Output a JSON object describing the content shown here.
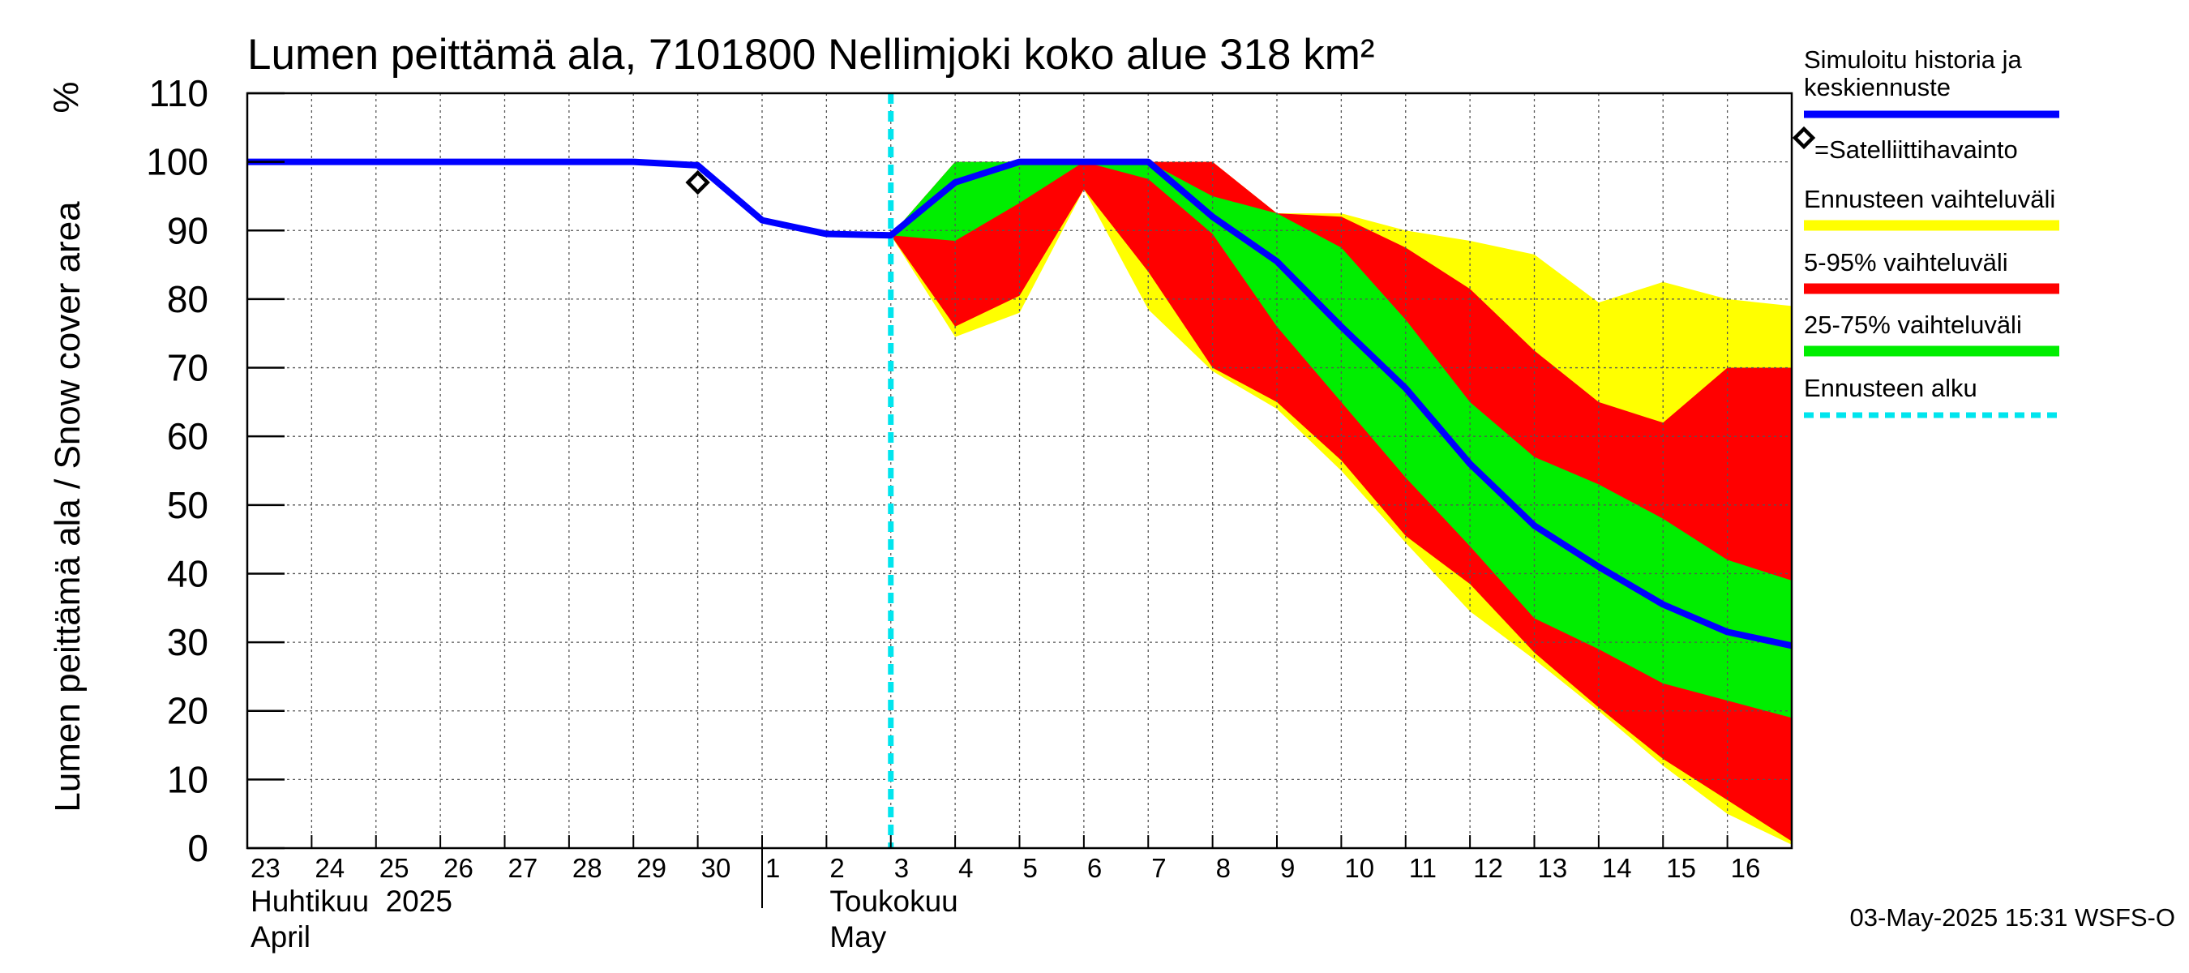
{
  "chart_data": {
    "type": "area",
    "title": "Lumen peittämä ala, 7101800 Nellimjoki koko alue 318 km²",
    "ylabel": "Lumen peittämä ala / Snow cover area",
    "yunit": "%",
    "ylim": [
      0,
      110
    ],
    "yticks": [
      0,
      10,
      20,
      30,
      40,
      50,
      60,
      70,
      80,
      90,
      100,
      110
    ],
    "x_start_day": 23,
    "x_end_day": 47,
    "day_labels": [
      {
        "day": 23,
        "label": "23"
      },
      {
        "day": 24,
        "label": "24"
      },
      {
        "day": 25,
        "label": "25"
      },
      {
        "day": 26,
        "label": "26"
      },
      {
        "day": 27,
        "label": "27"
      },
      {
        "day": 28,
        "label": "28"
      },
      {
        "day": 29,
        "label": "29"
      },
      {
        "day": 30,
        "label": "30"
      },
      {
        "day": 31,
        "label": "1"
      },
      {
        "day": 32,
        "label": "2"
      },
      {
        "day": 33,
        "label": "3"
      },
      {
        "day": 34,
        "label": "4"
      },
      {
        "day": 35,
        "label": "5"
      },
      {
        "day": 36,
        "label": "6"
      },
      {
        "day": 37,
        "label": "7"
      },
      {
        "day": 38,
        "label": "8"
      },
      {
        "day": 39,
        "label": "9"
      },
      {
        "day": 40,
        "label": "10"
      },
      {
        "day": 41,
        "label": "11"
      },
      {
        "day": 42,
        "label": "12"
      },
      {
        "day": 43,
        "label": "13"
      },
      {
        "day": 44,
        "label": "14"
      },
      {
        "day": 45,
        "label": "15"
      },
      {
        "day": 46,
        "label": "16"
      }
    ],
    "month_labels": [
      {
        "day": 23,
        "fi": "Huhtikuu  2025",
        "en": "April"
      },
      {
        "day": 32,
        "fi": "Toukokuu",
        "en": "May"
      }
    ],
    "month_boundary_day": 31,
    "forecast_start_day": 33,
    "simulated": {
      "name": "Simuloitu historia ja keskiennuste",
      "color": "#0000ff",
      "x": [
        23,
        29,
        30,
        31,
        32,
        33,
        34,
        35,
        36,
        37,
        38,
        39,
        40,
        41,
        42,
        43,
        44,
        45,
        46,
        47
      ],
      "y": [
        100,
        100,
        99.5,
        91.5,
        89.5,
        89.3,
        97,
        100,
        100,
        100,
        92,
        85.5,
        76,
        67,
        56,
        47,
        41,
        35.5,
        31.5,
        29.5
      ]
    },
    "observations": {
      "name": "=Satelliittihavainto",
      "x": [
        30
      ],
      "y": [
        97
      ]
    },
    "band_full": {
      "name": "Ennusteen vaihteluväli",
      "color": "#ffff00",
      "x": [
        33,
        34,
        35,
        36,
        37,
        38,
        39,
        40,
        41,
        42,
        43,
        44,
        45,
        46,
        47
      ],
      "lower": [
        89.3,
        74.5,
        78,
        96,
        78.5,
        69.5,
        64,
        55,
        44.5,
        34.5,
        27.5,
        20,
        12,
        5,
        0.5
      ],
      "upper": [
        89.3,
        100,
        100,
        100,
        100,
        100,
        92.5,
        92.5,
        90,
        88.5,
        86.5,
        79.5,
        82.5,
        80,
        79
      ]
    },
    "band_5_95": {
      "name": "5-95% vaihteluväli",
      "color": "#ff0000",
      "x": [
        33,
        34,
        35,
        36,
        37,
        38,
        39,
        40,
        41,
        42,
        43,
        44,
        45,
        46,
        47
      ],
      "lower": [
        89.3,
        76,
        80.5,
        96,
        84,
        70,
        65,
        56.5,
        45.5,
        38.5,
        28.5,
        20.5,
        13,
        7,
        1
      ],
      "upper": [
        89.3,
        100,
        100,
        100,
        100,
        100,
        92.5,
        92,
        87.5,
        81.5,
        72.5,
        65,
        62,
        70,
        70
      ]
    },
    "band_25_75": {
      "name": "25-75% vaihteluväli",
      "color": "#00ee00",
      "x": [
        33,
        34,
        35,
        36,
        37,
        38,
        39,
        40,
        41,
        42,
        43,
        44,
        45,
        46,
        47
      ],
      "lower": [
        89.3,
        88.5,
        94,
        100,
        97.5,
        89.5,
        76,
        65,
        54,
        44,
        33.5,
        29,
        24,
        21.5,
        19
      ],
      "upper": [
        89.3,
        100,
        100,
        100,
        100,
        95,
        92.5,
        87.5,
        77,
        65,
        57,
        53,
        48,
        42,
        39
      ]
    },
    "legend": [
      {
        "label": "Simuloitu historia ja keskiennuste",
        "kind": "line",
        "color": "#0000ff"
      },
      {
        "label": "=Satelliittihavainto",
        "kind": "diamond",
        "color": "#000000"
      },
      {
        "label": "Ennusteen vaihteluväli",
        "kind": "band",
        "color": "#ffff00"
      },
      {
        "label": "5-95% vaihteluväli",
        "kind": "band",
        "color": "#ff0000"
      },
      {
        "label": "25-75% vaihteluväli",
        "kind": "band",
        "color": "#00ee00"
      },
      {
        "label": "Ennusteen alku",
        "kind": "dashed",
        "color": "#00e5ee"
      }
    ],
    "timestamp": "03-May-2025 15:31 WSFS-O"
  }
}
